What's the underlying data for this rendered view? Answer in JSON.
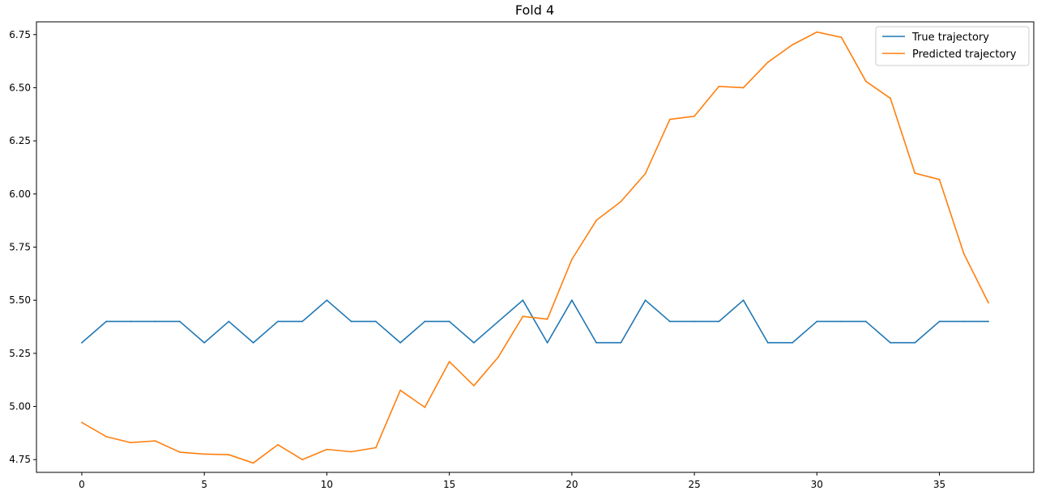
{
  "chart_data": {
    "type": "line",
    "title": "Fold 4",
    "xlabel": "",
    "ylabel": "",
    "xlim": [
      -1.85,
      38.85
    ],
    "ylim": [
      4.69,
      6.81
    ],
    "xticks": [
      0,
      5,
      10,
      15,
      20,
      25,
      30,
      35
    ],
    "xtick_labels": [
      "0",
      "5",
      "10",
      "15",
      "20",
      "25",
      "30",
      "35"
    ],
    "yticks": [
      4.75,
      5.0,
      5.25,
      5.5,
      5.75,
      6.0,
      6.25,
      6.5,
      6.75
    ],
    "ytick_labels": [
      "4.75",
      "5.00",
      "5.25",
      "5.50",
      "5.75",
      "6.00",
      "6.25",
      "6.50",
      "6.75"
    ],
    "grid": false,
    "legend_position": "top-right",
    "x": [
      0,
      1,
      2,
      3,
      4,
      5,
      6,
      7,
      8,
      9,
      10,
      11,
      12,
      13,
      14,
      15,
      16,
      17,
      18,
      19,
      20,
      21,
      22,
      23,
      24,
      25,
      26,
      27,
      28,
      29,
      30,
      31,
      32,
      33,
      34,
      35,
      36,
      37
    ],
    "series": [
      {
        "name": "True trajectory",
        "color": "#1f77b4",
        "values": [
          5.3,
          5.4,
          5.4,
          5.4,
          5.4,
          5.3,
          5.4,
          5.3,
          5.4,
          5.4,
          5.5,
          5.4,
          5.4,
          5.3,
          5.4,
          5.4,
          5.3,
          5.4,
          5.5,
          5.3,
          5.5,
          5.3,
          5.3,
          5.5,
          5.4,
          5.4,
          5.4,
          5.5,
          5.3,
          5.3,
          5.4,
          5.4,
          5.4,
          5.3,
          5.3,
          5.4,
          5.4,
          5.4
        ]
      },
      {
        "name": "Predicted trajectory",
        "color": "#ff7f0e",
        "values": [
          4.925,
          4.858,
          4.83,
          4.838,
          4.785,
          4.776,
          4.773,
          4.734,
          4.82,
          4.75,
          4.798,
          4.787,
          4.806,
          5.076,
          4.996,
          5.211,
          5.098,
          5.233,
          5.424,
          5.411,
          5.692,
          5.876,
          5.964,
          6.096,
          6.351,
          6.366,
          6.506,
          6.5,
          6.62,
          6.702,
          6.762,
          6.737,
          6.53,
          6.45,
          6.098,
          6.068,
          5.718,
          5.488
        ]
      }
    ]
  }
}
